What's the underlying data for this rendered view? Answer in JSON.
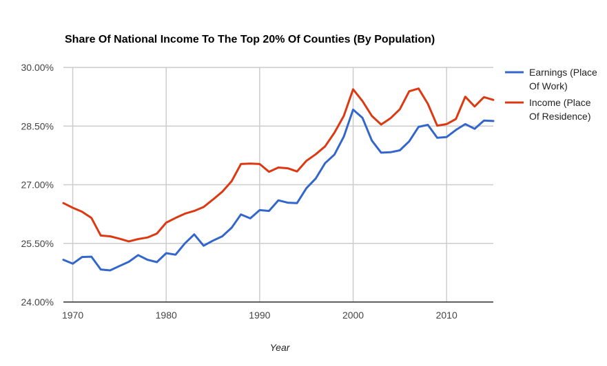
{
  "chart_data": {
    "type": "line",
    "title": "Share Of National Income To The Top 20% Of Counties (By Population)",
    "xlabel": "Year",
    "ylabel": "",
    "xlim": [
      1969,
      2015
    ],
    "ylim": [
      24.0,
      30.0
    ],
    "x_ticks": [
      {
        "value": 1970,
        "label": "1970"
      },
      {
        "value": 1980,
        "label": "1980"
      },
      {
        "value": 1990,
        "label": "1990"
      },
      {
        "value": 2000,
        "label": "2000"
      },
      {
        "value": 2010,
        "label": "2010"
      }
    ],
    "y_ticks": [
      {
        "value": 24.0,
        "label": "24.00%"
      },
      {
        "value": 25.5,
        "label": "25.50%"
      },
      {
        "value": 27.0,
        "label": "27.00%"
      },
      {
        "value": 28.5,
        "label": "28.50%"
      },
      {
        "value": 30.0,
        "label": "30.00%"
      }
    ],
    "grid": true,
    "legend_position": "right",
    "x": [
      1969,
      1970,
      1971,
      1972,
      1973,
      1974,
      1975,
      1976,
      1977,
      1978,
      1979,
      1980,
      1981,
      1982,
      1983,
      1984,
      1985,
      1986,
      1987,
      1988,
      1989,
      1990,
      1991,
      1992,
      1993,
      1994,
      1995,
      1996,
      1997,
      1998,
      1999,
      2000,
      2001,
      2002,
      2003,
      2004,
      2005,
      2006,
      2007,
      2008,
      2009,
      2010,
      2011,
      2012,
      2013,
      2014,
      2015
    ],
    "series": [
      {
        "name": "Earnings (Place Of Work)",
        "legend_lines": [
          "Earnings (Place",
          "Of Work)"
        ],
        "color": "#3366cc",
        "values": [
          25.08,
          24.98,
          25.15,
          25.16,
          24.83,
          24.81,
          24.92,
          25.03,
          25.2,
          25.08,
          25.02,
          25.25,
          25.21,
          25.5,
          25.73,
          25.44,
          25.57,
          25.68,
          25.9,
          26.24,
          26.14,
          26.35,
          26.33,
          26.6,
          26.54,
          26.53,
          26.91,
          27.16,
          27.55,
          27.77,
          28.23,
          28.92,
          28.71,
          28.13,
          27.82,
          27.83,
          27.88,
          28.11,
          28.48,
          28.53,
          28.2,
          28.22,
          28.4,
          28.55,
          28.43,
          28.64,
          28.63
        ]
      },
      {
        "name": "Income (Place Of Residence)",
        "legend_lines": [
          "Income (Place",
          "Of Residence)"
        ],
        "color": "#dc3912",
        "values": [
          26.53,
          26.41,
          26.31,
          26.15,
          25.7,
          25.68,
          25.62,
          25.55,
          25.61,
          25.65,
          25.75,
          26.03,
          26.15,
          26.26,
          26.33,
          26.43,
          26.62,
          26.82,
          27.09,
          27.53,
          27.54,
          27.53,
          27.33,
          27.44,
          27.42,
          27.34,
          27.61,
          27.78,
          27.98,
          28.33,
          28.76,
          29.44,
          29.14,
          28.76,
          28.54,
          28.7,
          28.93,
          29.39,
          29.46,
          29.07,
          28.51,
          28.55,
          28.68,
          29.25,
          29.0,
          29.24,
          29.17
        ]
      }
    ]
  }
}
